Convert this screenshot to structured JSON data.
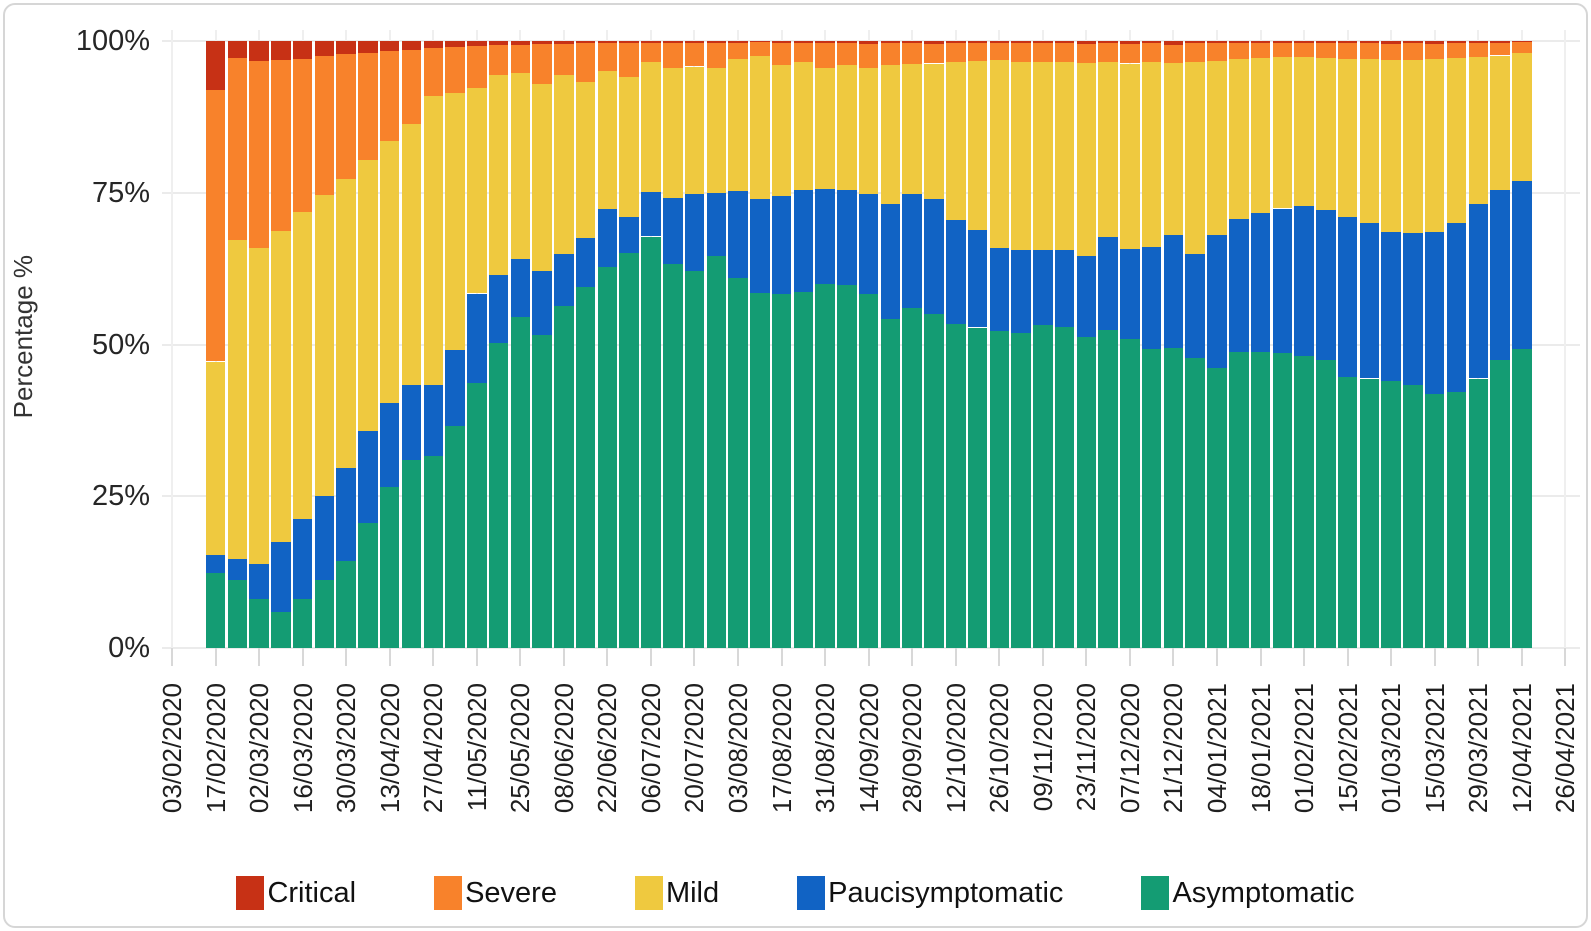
{
  "figure": {
    "y_axis_title": "Percentage %",
    "y_tick_labels": [
      "100%",
      "75%",
      "50%",
      "25%",
      "0%"
    ],
    "y_tick_values": [
      100,
      75,
      50,
      25,
      0
    ]
  },
  "legend": {
    "items": [
      {
        "label": "Critical",
        "color": "#C73115"
      },
      {
        "label": "Severe",
        "color": "#F8822B"
      },
      {
        "label": "Mild",
        "color": "#EFC93F"
      },
      {
        "label": "Paucisymptomatic",
        "color": "#1163C4"
      },
      {
        "label": "Asymptomatic",
        "color": "#149C73"
      }
    ]
  },
  "chart_data": {
    "type": "bar",
    "subtype": "stacked-percent",
    "title": "",
    "xlabel": "",
    "ylabel": "Percentage %",
    "ylim": [
      0,
      100
    ],
    "grid": true,
    "legend_position": "bottom",
    "y_tick_labels": [
      "0%",
      "25%",
      "50%",
      "75%",
      "100%"
    ],
    "x_tick_labels": [
      "03/02/2020",
      "17/02/2020",
      "02/03/2020",
      "16/03/2020",
      "30/03/2020",
      "13/04/2020",
      "27/04/2020",
      "11/05/2020",
      "25/05/2020",
      "08/06/2020",
      "22/06/2020",
      "06/07/2020",
      "20/07/2020",
      "03/08/2020",
      "17/08/2020",
      "31/08/2020",
      "14/09/2020",
      "28/09/2020",
      "12/10/2020",
      "26/10/2020",
      "09/11/2020",
      "23/11/2020",
      "07/12/2020",
      "21/12/2020",
      "04/01/2021",
      "18/01/2021",
      "01/02/2021",
      "15/02/2021",
      "01/03/2021",
      "15/03/2021",
      "29/03/2021",
      "12/04/2021",
      "26/04/2021"
    ],
    "categories": [
      "17/02/2020",
      "24/02/2020",
      "02/03/2020",
      "09/03/2020",
      "16/03/2020",
      "23/03/2020",
      "30/03/2020",
      "06/04/2020",
      "13/04/2020",
      "20/04/2020",
      "27/04/2020",
      "04/05/2020",
      "11/05/2020",
      "18/05/2020",
      "25/05/2020",
      "01/06/2020",
      "08/06/2020",
      "15/06/2020",
      "22/06/2020",
      "29/06/2020",
      "06/07/2020",
      "13/07/2020",
      "20/07/2020",
      "27/07/2020",
      "03/08/2020",
      "10/08/2020",
      "17/08/2020",
      "24/08/2020",
      "31/08/2020",
      "07/09/2020",
      "14/09/2020",
      "21/09/2020",
      "28/09/2020",
      "05/10/2020",
      "12/10/2020",
      "19/10/2020",
      "26/10/2020",
      "02/11/2020",
      "09/11/2020",
      "16/11/2020",
      "23/11/2020",
      "30/11/2020",
      "07/12/2020",
      "14/12/2020",
      "21/12/2020",
      "28/12/2020",
      "04/01/2021",
      "11/01/2021",
      "18/01/2021",
      "25/01/2021",
      "01/02/2021",
      "08/02/2021",
      "15/02/2021",
      "22/02/2021",
      "01/03/2021",
      "08/03/2021",
      "15/03/2021",
      "22/03/2021",
      "29/03/2021",
      "05/04/2021",
      "12/04/2021"
    ],
    "stack_order_bottom_to_top": [
      "Asymptomatic",
      "Paucisymptomatic",
      "Mild",
      "Severe",
      "Critical"
    ],
    "series": [
      {
        "name": "Asymptomatic",
        "color": "#149C73",
        "values": [
          12.3,
          11.2,
          8.1,
          6.0,
          8.1,
          11.2,
          14.3,
          20.6,
          26.5,
          31.0,
          31.6,
          36.6,
          43.6,
          50.2,
          54.6,
          51.5,
          56.3,
          59.5,
          62.8,
          65.0,
          67.8,
          63.3,
          62.2,
          64.6,
          61.0,
          58.5,
          58.3,
          58.6,
          60.0,
          59.8,
          58.4,
          54.2,
          56.0,
          55.0,
          53.4,
          52.8,
          52.2,
          51.9,
          53.2,
          52.9,
          51.2,
          52.4,
          50.9,
          49.2,
          49.4,
          47.8,
          46.1,
          48.8,
          48.7,
          48.6,
          48.1,
          47.4,
          44.7,
          44.4,
          44.0,
          43.3,
          41.9,
          42.2,
          44.4,
          47.4,
          49.2
        ]
      },
      {
        "name": "Paucisymptomatic",
        "color": "#1163C4",
        "values": [
          3.1,
          3.4,
          5.8,
          11.4,
          13.2,
          13.9,
          15.3,
          15.2,
          13.8,
          12.4,
          11.7,
          12.5,
          14.8,
          11.3,
          9.5,
          10.6,
          8.7,
          8.0,
          9.5,
          6.0,
          7.3,
          10.8,
          12.6,
          10.4,
          14.3,
          15.5,
          16.1,
          16.8,
          15.6,
          15.7,
          16.4,
          18.9,
          18.8,
          19.0,
          17.1,
          16.0,
          13.7,
          13.7,
          12.4,
          12.7,
          13.4,
          15.3,
          14.9,
          16.8,
          18.6,
          17.1,
          21.9,
          21.9,
          23.0,
          23.8,
          24.7,
          24.7,
          26.3,
          25.6,
          24.6,
          25.0,
          26.7,
          27.8,
          28.7,
          28.1,
          27.8
        ]
      },
      {
        "name": "Mild",
        "color": "#EFC93F",
        "values": [
          31.8,
          52.6,
          52.0,
          51.3,
          50.5,
          49.5,
          47.7,
          44.6,
          43.2,
          42.9,
          47.6,
          42.4,
          33.9,
          32.9,
          30.6,
          30.9,
          29.4,
          25.8,
          22.7,
          23.0,
          21.4,
          21.4,
          21.0,
          20.5,
          21.7,
          23.5,
          21.6,
          21.1,
          19.9,
          20.5,
          20.7,
          22.9,
          21.4,
          22.3,
          26.0,
          27.9,
          30.9,
          31.0,
          30.9,
          31.0,
          31.8,
          28.9,
          30.5,
          30.5,
          28.4,
          31.7,
          28.7,
          26.3,
          25.5,
          24.9,
          24.5,
          25.1,
          26.0,
          27.0,
          28.2,
          28.6,
          28.4,
          27.2,
          24.3,
          22.1,
          21.0
        ]
      },
      {
        "name": "Severe",
        "color": "#F8822B",
        "values": [
          44.8,
          30.0,
          30.8,
          28.1,
          25.2,
          22.9,
          20.5,
          17.6,
          14.8,
          12.2,
          7.9,
          7.5,
          6.9,
          5.0,
          4.7,
          6.5,
          5.1,
          6.3,
          4.6,
          5.6,
          3.2,
          4.1,
          3.9,
          4.1,
          2.7,
          2.3,
          3.6,
          3.2,
          4.1,
          3.7,
          4.0,
          3.6,
          3.5,
          3.2,
          3.1,
          3.0,
          2.9,
          3.0,
          3.1,
          3.1,
          3.1,
          3.0,
          3.2,
          3.1,
          3.0,
          3.0,
          2.9,
          2.6,
          2.5,
          2.4,
          2.4,
          2.4,
          2.6,
          2.6,
          2.7,
          2.7,
          2.5,
          2.4,
          2.3,
          2.1,
          1.8
        ]
      },
      {
        "name": "Critical",
        "color": "#C73115",
        "values": [
          8.0,
          2.8,
          3.3,
          3.2,
          3.0,
          2.5,
          2.2,
          2.0,
          1.7,
          1.5,
          1.2,
          1.0,
          0.8,
          0.6,
          0.6,
          0.5,
          0.5,
          0.4,
          0.4,
          0.4,
          0.3,
          0.4,
          0.3,
          0.4,
          0.3,
          0.2,
          0.4,
          0.3,
          0.4,
          0.3,
          0.5,
          0.4,
          0.3,
          0.5,
          0.4,
          0.3,
          0.3,
          0.4,
          0.4,
          0.3,
          0.5,
          0.4,
          0.5,
          0.4,
          0.6,
          0.4,
          0.4,
          0.4,
          0.3,
          0.3,
          0.3,
          0.4,
          0.4,
          0.4,
          0.5,
          0.4,
          0.5,
          0.4,
          0.3,
          0.3,
          0.2
        ]
      }
    ]
  }
}
